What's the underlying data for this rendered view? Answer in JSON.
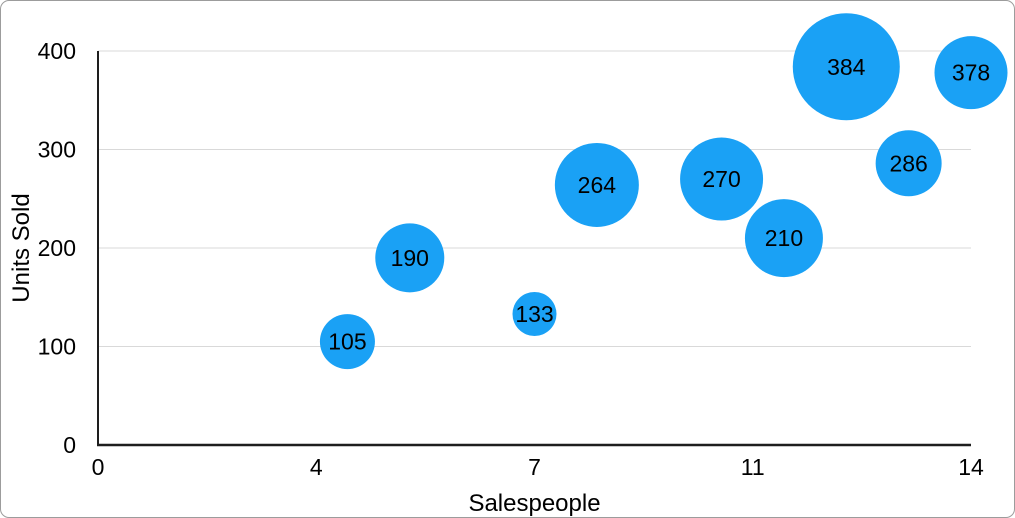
{
  "figure": {
    "background_color": "#FFFFFF",
    "border_color": "#9C9C9C"
  },
  "chart_data": {
    "type": "scatter",
    "variant": "bubble",
    "title": "",
    "xlabel": "Salespeople",
    "ylabel": "Units Sold",
    "xlim": [
      0,
      14
    ],
    "ylim": [
      0,
      400
    ],
    "grid": "horizontal-gridlines",
    "legend": "none",
    "x_ticks": [
      {
        "value": 0,
        "label": "0"
      },
      {
        "value": 3.5,
        "label": "4"
      },
      {
        "value": 7,
        "label": "7"
      },
      {
        "value": 10.5,
        "label": "11"
      },
      {
        "value": 14,
        "label": "14"
      }
    ],
    "y_ticks": [
      {
        "value": 0,
        "label": "0"
      },
      {
        "value": 100,
        "label": "100"
      },
      {
        "value": 200,
        "label": "200"
      },
      {
        "value": 300,
        "label": "300"
      },
      {
        "value": 400,
        "label": "400"
      }
    ],
    "series": [
      {
        "name": "Units Sold",
        "color": "#1AA1F5",
        "points": [
          {
            "x": 4,
            "y": 105,
            "label": "105",
            "radius_px": 27.5
          },
          {
            "x": 5,
            "y": 190,
            "label": "190",
            "radius_px": 34.5
          },
          {
            "x": 7,
            "y": 133,
            "label": "133",
            "radius_px": 22
          },
          {
            "x": 8,
            "y": 264,
            "label": "264",
            "radius_px": 42
          },
          {
            "x": 10,
            "y": 270,
            "label": "270",
            "radius_px": 41.5
          },
          {
            "x": 11,
            "y": 210,
            "label": "210",
            "radius_px": 39
          },
          {
            "x": 12,
            "y": 384,
            "label": "384",
            "radius_px": 53.5
          },
          {
            "x": 13,
            "y": 286,
            "label": "286",
            "radius_px": 33
          },
          {
            "x": 14,
            "y": 378,
            "label": "378",
            "radius_px": 36.5
          }
        ]
      }
    ],
    "colors": {
      "axis_line": "#1e1e1e",
      "gridline": "#d9d9d9",
      "tick_label": "#000000",
      "axis_title": "#000000",
      "bubble_label": "#000000"
    }
  }
}
